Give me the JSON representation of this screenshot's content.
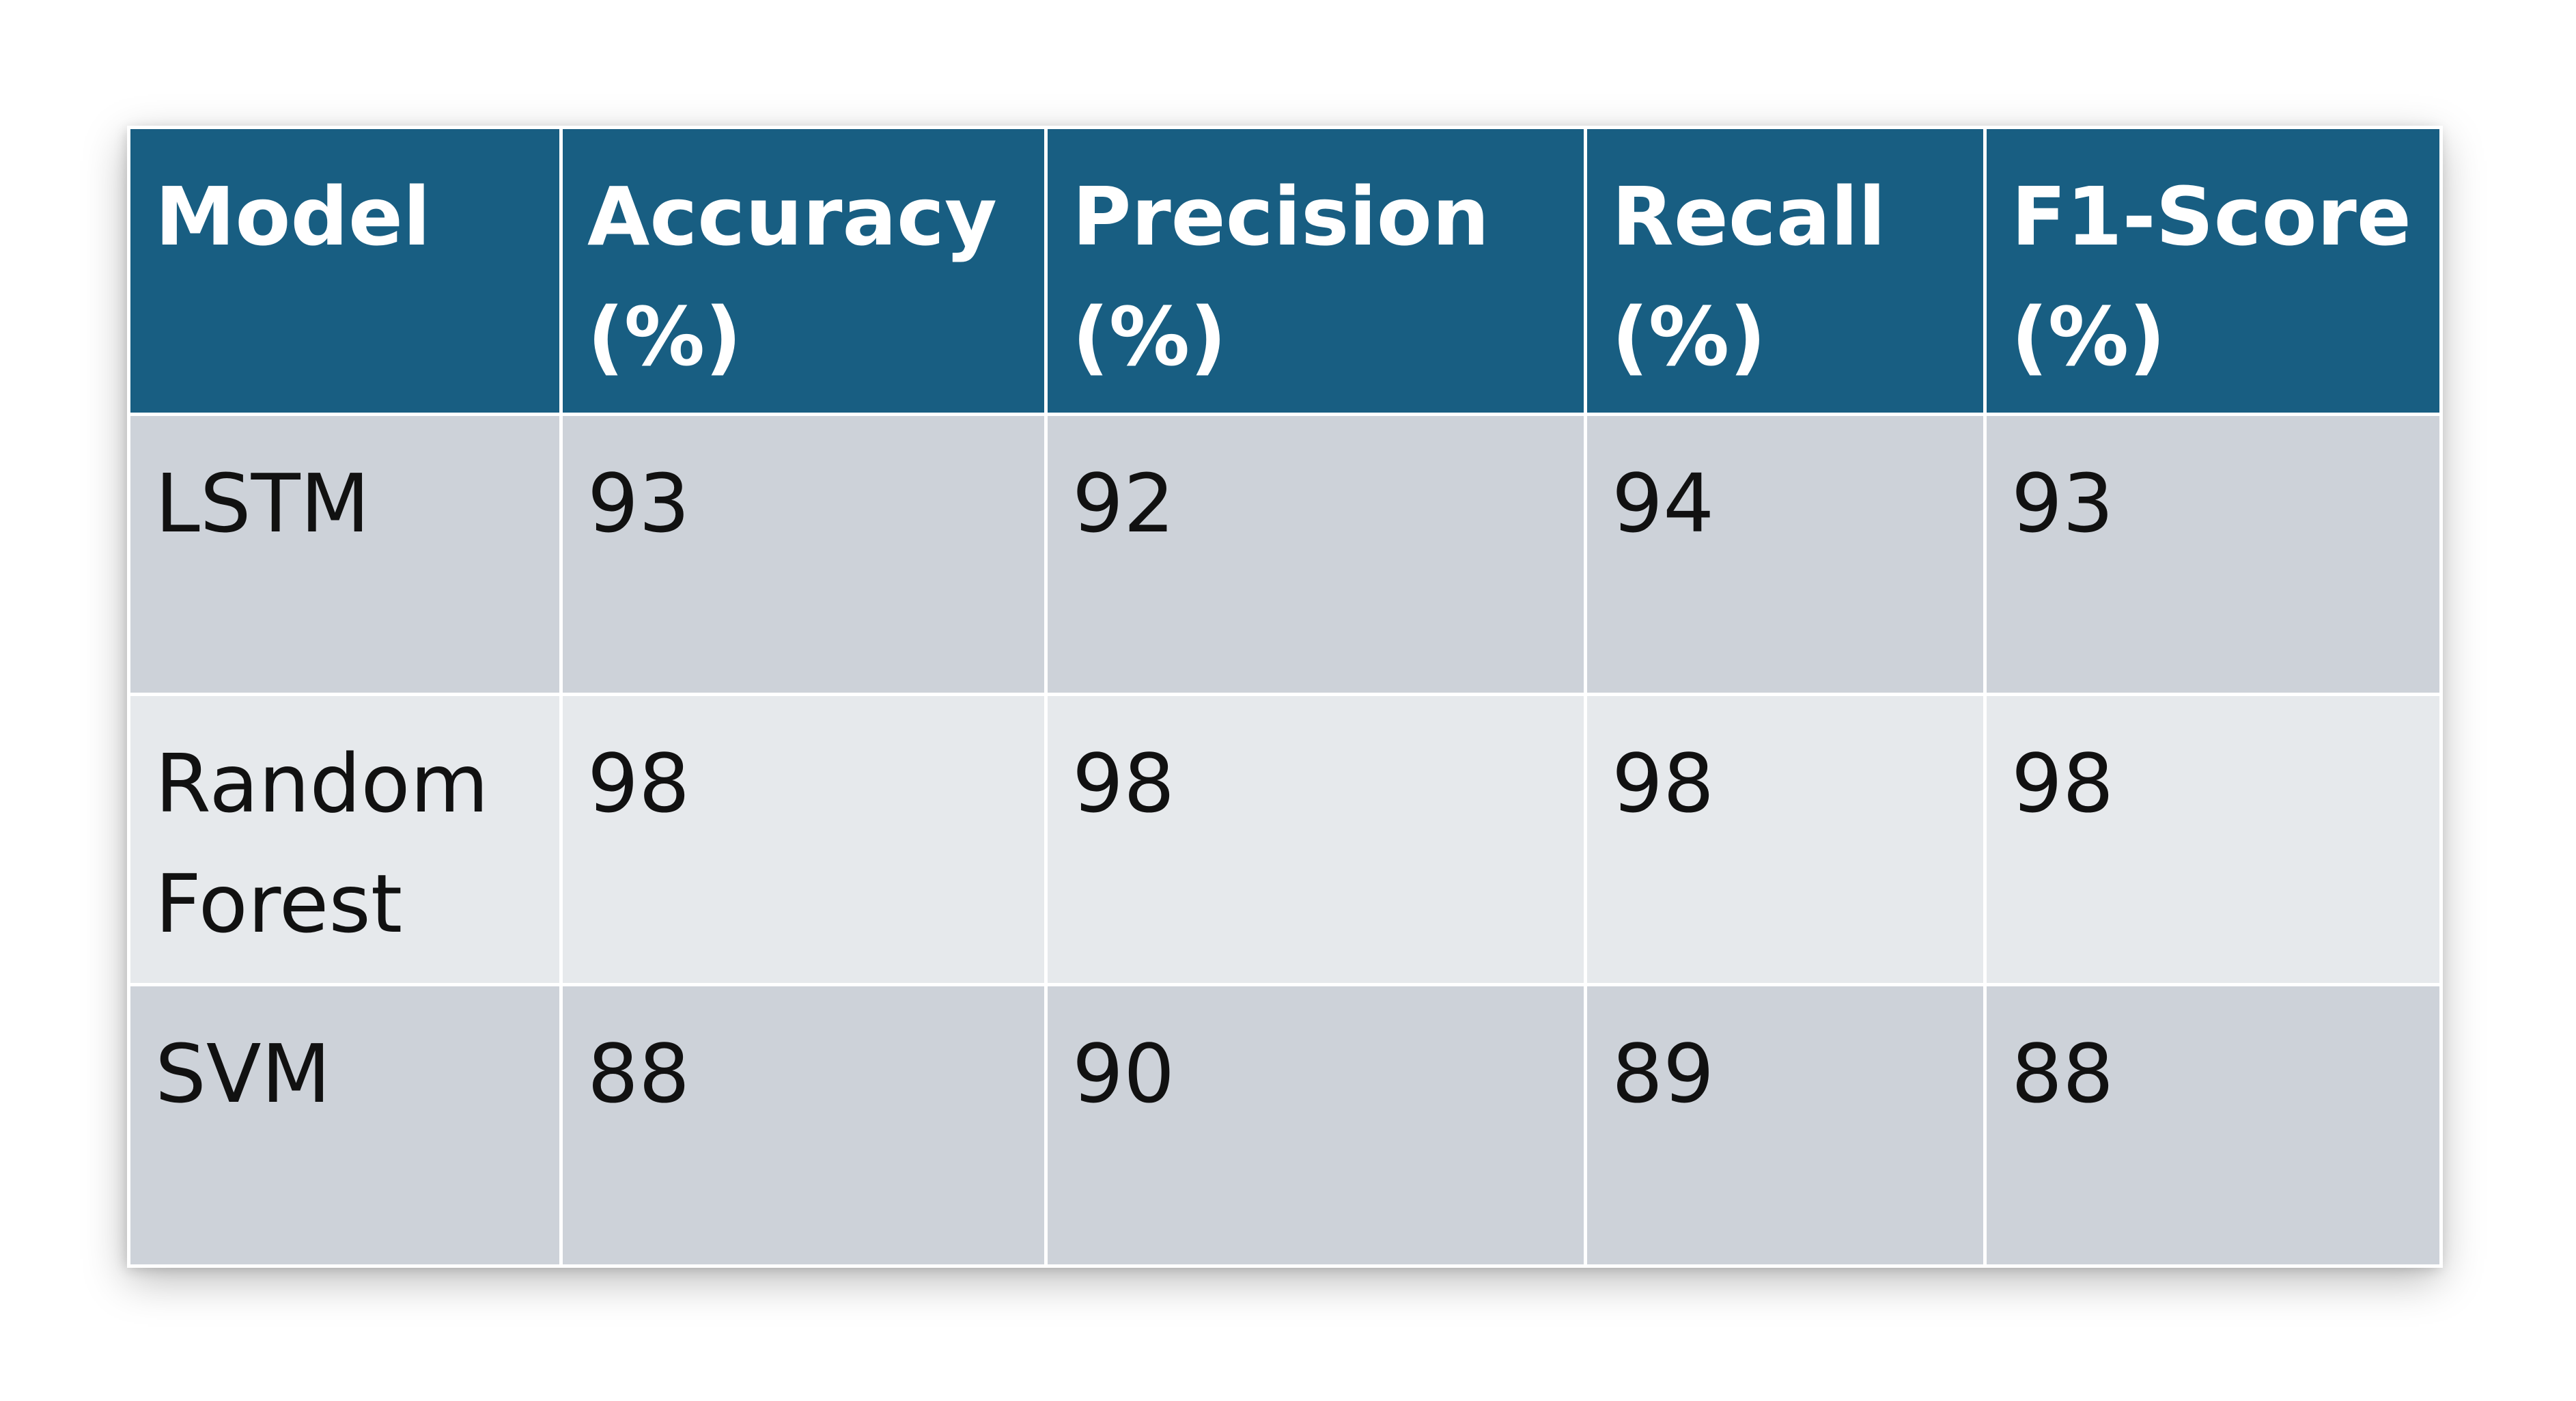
{
  "table": {
    "headers": [
      {
        "line1": "Model",
        "line2": ""
      },
      {
        "line1": "Accuracy",
        "line2": "(%)"
      },
      {
        "line1": "Precision",
        "line2": "(%)"
      },
      {
        "line1": "Recall",
        "line2": "(%)"
      },
      {
        "line1": "F1-Score",
        "line2": "(%)"
      }
    ],
    "rows": [
      {
        "model_line1": "LSTM",
        "model_line2": "",
        "accuracy": "93",
        "precision": "92",
        "recall": "94",
        "f1": "93"
      },
      {
        "model_line1": "Random",
        "model_line2": "Forest",
        "accuracy": "98",
        "precision": "98",
        "recall": "98",
        "f1": "98"
      },
      {
        "model_line1": "SVM",
        "model_line2": "",
        "accuracy": "88",
        "precision": "90",
        "recall": "89",
        "f1": "88"
      }
    ]
  },
  "colors": {
    "header_bg": "#185e82",
    "row_dark": "#cdd2d9",
    "row_light": "#e6e9ec"
  }
}
